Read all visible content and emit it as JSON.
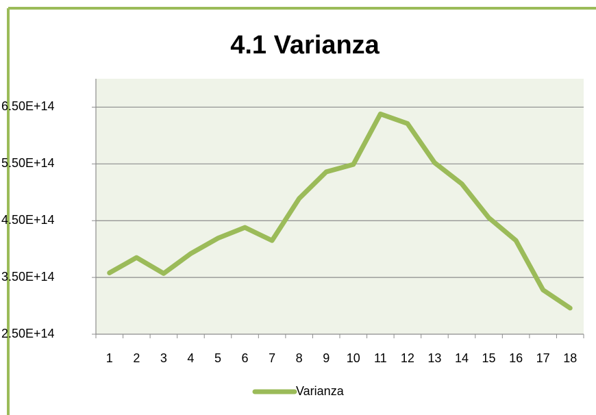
{
  "chart_data": {
    "type": "line",
    "title": "4.1 Varianza",
    "categories": [
      "1",
      "2",
      "3",
      "4",
      "5",
      "6",
      "7",
      "8",
      "9",
      "10",
      "11",
      "12",
      "13",
      "14",
      "15",
      "16",
      "17",
      "18"
    ],
    "series": [
      {
        "name": "Varianza",
        "color": "#9bbb59",
        "values": [
          358000000000000.0,
          385000000000000.0,
          357000000000000.0,
          392000000000000.0,
          419000000000000.0,
          438000000000000.0,
          415000000000000.0,
          489000000000000.0,
          536000000000000.0,
          549000000000000.0,
          638000000000000.0,
          621000000000000.0,
          552000000000000.0,
          515000000000000.0,
          455000000000000.0,
          415000000000000.0,
          328000000000000.0,
          296000000000000.0
        ]
      }
    ],
    "ylim": [
      250000000000000.0,
      700000000000000.0
    ],
    "yticks": [
      {
        "value": 250000000000000.0,
        "label": "2.50E+14"
      },
      {
        "value": 350000000000000.0,
        "label": "3.50E+14"
      },
      {
        "value": 450000000000000.0,
        "label": "4.50E+14"
      },
      {
        "value": 550000000000000.0,
        "label": "5.50E+14"
      },
      {
        "value": 650000000000000.0,
        "label": "6.50E+14"
      }
    ],
    "grid": true,
    "legend": "bottom"
  }
}
